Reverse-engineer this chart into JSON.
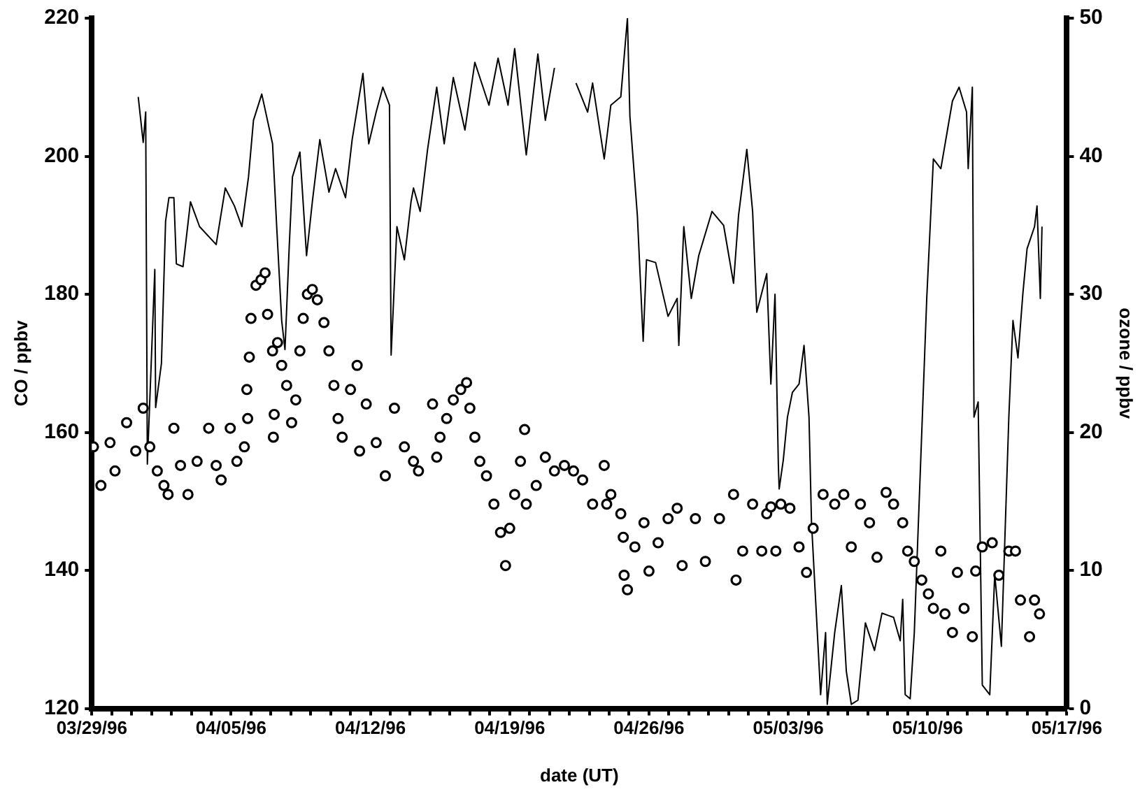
{
  "chart_data": {
    "type": "scatter",
    "xlabel": "date (UT)",
    "ylabel": "CO / ppbv",
    "y2label": "ozone / ppbv",
    "xlim": [
      "1996-03-29",
      "1996-05-17"
    ],
    "xticks": [
      {
        "value": "1996-03-29",
        "label": "03/29/96"
      },
      {
        "value": "1996-03-30",
        "label": null
      },
      {
        "value": "1996-03-31",
        "label": null
      },
      {
        "value": "1996-04-01",
        "label": null
      },
      {
        "value": "1996-04-02",
        "label": null
      },
      {
        "value": "1996-04-03",
        "label": null
      },
      {
        "value": "1996-04-04",
        "label": null
      },
      {
        "value": "1996-04-05",
        "label": "04/05/96"
      },
      {
        "value": "1996-04-06",
        "label": null
      },
      {
        "value": "1996-04-07",
        "label": null
      },
      {
        "value": "1996-04-08",
        "label": null
      },
      {
        "value": "1996-04-09",
        "label": null
      },
      {
        "value": "1996-04-10",
        "label": null
      },
      {
        "value": "1996-04-11",
        "label": null
      },
      {
        "value": "1996-04-12",
        "label": "04/12/96"
      },
      {
        "value": "1996-04-13",
        "label": null
      },
      {
        "value": "1996-04-14",
        "label": null
      },
      {
        "value": "1996-04-15",
        "label": null
      },
      {
        "value": "1996-04-16",
        "label": null
      },
      {
        "value": "1996-04-17",
        "label": null
      },
      {
        "value": "1996-04-18",
        "label": null
      },
      {
        "value": "1996-04-19",
        "label": "04/19/96"
      },
      {
        "value": "1996-04-20",
        "label": null
      },
      {
        "value": "1996-04-21",
        "label": null
      },
      {
        "value": "1996-04-22",
        "label": null
      },
      {
        "value": "1996-04-23",
        "label": null
      },
      {
        "value": "1996-04-24",
        "label": null
      },
      {
        "value": "1996-04-25",
        "label": null
      },
      {
        "value": "1996-04-26",
        "label": "04/26/96"
      },
      {
        "value": "1996-04-27",
        "label": null
      },
      {
        "value": "1996-04-28",
        "label": null
      },
      {
        "value": "1996-04-29",
        "label": null
      },
      {
        "value": "1996-04-30",
        "label": null
      },
      {
        "value": "1996-05-01",
        "label": null
      },
      {
        "value": "1996-05-02",
        "label": null
      },
      {
        "value": "1996-05-03",
        "label": "05/03/96"
      },
      {
        "value": "1996-05-04",
        "label": null
      },
      {
        "value": "1996-05-05",
        "label": null
      },
      {
        "value": "1996-05-06",
        "label": null
      },
      {
        "value": "1996-05-07",
        "label": null
      },
      {
        "value": "1996-05-08",
        "label": null
      },
      {
        "value": "1996-05-09",
        "label": null
      },
      {
        "value": "1996-05-10",
        "label": "05/10/96"
      },
      {
        "value": "1996-05-11",
        "label": null
      },
      {
        "value": "1996-05-12",
        "label": null
      },
      {
        "value": "1996-05-13",
        "label": null
      },
      {
        "value": "1996-05-14",
        "label": null
      },
      {
        "value": "1996-05-15",
        "label": null
      },
      {
        "value": "1996-05-16",
        "label": null
      },
      {
        "value": "1996-05-17",
        "label": "05/17/96"
      }
    ],
    "ylim": [
      120,
      220
    ],
    "yticks": [
      120,
      140,
      160,
      180,
      200,
      220
    ],
    "y2lim": [
      0,
      50
    ],
    "y2ticks": [
      0,
      10,
      20,
      30,
      40,
      50
    ],
    "legend": false,
    "series": [
      {
        "color": "#000000",
        "marker": "circle",
        "x": [
          "1996-03-29T02:00",
          "1996-03-29T11:00",
          "1996-03-29T22:00",
          "1996-03-30T04:00",
          "1996-03-30T18:00",
          "1996-03-31T05:00",
          "1996-03-31T14:00",
          "1996-03-31T22:00",
          "1996-04-01T07:00",
          "1996-04-01T15:00",
          "1996-04-01T20:00",
          "1996-04-02T03:00",
          "1996-04-02T11:00",
          "1996-04-02T20:00",
          "1996-04-03T07:00",
          "1996-04-03T21:00",
          "1996-04-04T06:00",
          "1996-04-04T12:00",
          "1996-04-04T23:00",
          "1996-04-05T07:00",
          "1996-04-05T16:00",
          "1996-04-05T20:00",
          "1996-04-05T19:00",
          "1996-04-05T22:00",
          "1996-04-06T00:00",
          "1996-04-06T06:00",
          "1996-04-06T12:00",
          "1996-04-06T17:00",
          "1996-04-06T20:00",
          "1996-04-07T02:00",
          "1996-04-07T04:00",
          "1996-04-07T03:00",
          "1996-04-07T08:00",
          "1996-04-07T13:00",
          "1996-04-07T19:00",
          "1996-04-08T01:00",
          "1996-04-08T06:00",
          "1996-04-08T11:00",
          "1996-04-08T15:00",
          "1996-04-08T20:00",
          "1996-04-09T02:00",
          "1996-04-09T08:00",
          "1996-04-09T16:00",
          "1996-04-09T22:00",
          "1996-04-10T04:00",
          "1996-04-10T09:00",
          "1996-04-10T14:00",
          "1996-04-11T00:00",
          "1996-04-11T08:00",
          "1996-04-11T11:00",
          "1996-04-11T19:00",
          "1996-04-12T07:00",
          "1996-04-12T18:00",
          "1996-04-13T05:00",
          "1996-04-13T17:00",
          "1996-04-14T04:00",
          "1996-04-14T10:00",
          "1996-04-15T03:00",
          "1996-04-15T12:00",
          "1996-04-15T08:00",
          "1996-04-15T20:00",
          "1996-04-16T04:00",
          "1996-04-16T13:00",
          "1996-04-16T20:00",
          "1996-04-17T00:00",
          "1996-04-17T06:00",
          "1996-04-17T12:00",
          "1996-04-17T20:00",
          "1996-04-18T05:00",
          "1996-04-18T13:00",
          "1996-04-18T19:00",
          "1996-04-19T00:00",
          "1996-04-19T06:00",
          "1996-04-19T13:00",
          "1996-04-19T18:00",
          "1996-04-19T20:00",
          "1996-04-20T08:00",
          "1996-04-20T19:00",
          "1996-04-21T06:00",
          "1996-04-21T18:00",
          "1996-04-22T05:00",
          "1996-04-22T16:00",
          "1996-04-23T04:00",
          "1996-04-23T18:00",
          "1996-04-23T21:00",
          "1996-04-24T02:00",
          "1996-04-24T14:00",
          "1996-04-24T17:00",
          "1996-04-24T18:00",
          "1996-04-24T22:00",
          "1996-04-25T07:00",
          "1996-04-25T18:00",
          "1996-04-26T00:00",
          "1996-04-26T11:00",
          "1996-04-26T23:00",
          "1996-04-27T10:00",
          "1996-04-27T16:00",
          "1996-04-28T08:00",
          "1996-04-28T20:00",
          "1996-04-29T13:00",
          "1996-04-30T06:00",
          "1996-04-30T09:00",
          "1996-04-30T17:00",
          "1996-05-01T05:00",
          "1996-05-01T22:00",
          "1996-05-02T09:00",
          "1996-05-01T16:00",
          "1996-05-02T03:00",
          "1996-05-02T15:00",
          "1996-05-03T02:00",
          "1996-05-03T13:00",
          "1996-05-03T22:00",
          "1996-05-04T06:00",
          "1996-05-04T18:00",
          "1996-05-05T08:00",
          "1996-05-05T19:00",
          "1996-05-06T04:00",
          "1996-05-06T15:00",
          "1996-05-07T02:00",
          "1996-05-07T11:00",
          "1996-05-07T22:00",
          "1996-05-08T07:00",
          "1996-05-08T18:00",
          "1996-05-09T00:00",
          "1996-05-09T08:00",
          "1996-05-09T17:00",
          "1996-05-10T01:00",
          "1996-05-10T07:00",
          "1996-05-10T16:00",
          "1996-05-10T21:00",
          "1996-05-11T06:00",
          "1996-05-11T12:00",
          "1996-05-11T20:00",
          "1996-05-12T06:00",
          "1996-05-12T10:00",
          "1996-05-12T18:00",
          "1996-05-13T06:00",
          "1996-05-13T14:00",
          "1996-05-14T02:00",
          "1996-05-14T10:00",
          "1996-05-14T16:00",
          "1996-05-15T03:00",
          "1996-05-15T09:00",
          "1996-05-15T15:00"
        ],
        "values": [
          157.9,
          152.3,
          158.5,
          154.4,
          161.4,
          157.3,
          163.5,
          157.9,
          154.4,
          152.3,
          151.0,
          160.6,
          155.2,
          151.0,
          155.8,
          160.6,
          155.2,
          153.1,
          160.6,
          155.8,
          157.9,
          162.0,
          166.2,
          170.9,
          176.5,
          181.3,
          182.1,
          183.1,
          177.1,
          171.8,
          162.6,
          159.3,
          173.0,
          169.7,
          166.8,
          161.4,
          164.7,
          171.8,
          176.5,
          180.0,
          180.7,
          179.2,
          175.9,
          171.8,
          166.8,
          162.0,
          159.3,
          166.2,
          169.7,
          157.3,
          164.1,
          158.5,
          153.7,
          163.5,
          157.9,
          155.8,
          154.4,
          164.1,
          159.3,
          156.4,
          162.0,
          164.7,
          166.2,
          167.2,
          163.5,
          159.3,
          155.8,
          153.7,
          149.6,
          145.5,
          140.7,
          146.1,
          151.0,
          155.8,
          160.4,
          149.6,
          152.3,
          156.4,
          154.4,
          155.2,
          154.4,
          153.1,
          149.6,
          155.2,
          149.6,
          151.0,
          148.2,
          144.8,
          139.3,
          137.2,
          143.4,
          146.9,
          139.9,
          144.0,
          147.5,
          149.0,
          140.7,
          147.5,
          141.3,
          147.5,
          151.0,
          138.6,
          142.8,
          149.6,
          148.2,
          142.8,
          142.8,
          149.2,
          149.6,
          149.0,
          143.4,
          139.7,
          146.1,
          151.0,
          149.6,
          151.0,
          143.4,
          149.6,
          146.9,
          141.9,
          151.3,
          149.6,
          146.9,
          142.8,
          141.3,
          138.6,
          136.6,
          134.5,
          142.8,
          133.7,
          131.0,
          139.7,
          134.5,
          130.4,
          139.9,
          143.4,
          144.0,
          139.3,
          142.8,
          142.8,
          135.7,
          130.4,
          135.7,
          133.7
        ]
      },
      {
        "type": "line",
        "axis": "y2",
        "color": "#000000",
        "marker": "none",
        "line_style": "solid",
        "x": [
          "1996-03-31T08:00",
          "1996-03-31T14:00",
          "1996-03-31T17:00",
          "1996-03-31T19:00",
          "1996-04-01T04:00",
          "1996-04-01T05:00",
          "1996-04-01T12:00",
          "1996-04-01T17:00",
          "1996-04-01T21:00",
          "1996-04-02T03:00",
          "1996-04-02T06:00",
          "1996-04-02T14:00",
          "1996-04-02T23:00",
          "1996-04-03T10:00",
          "1996-04-04T06:00",
          "1996-04-04T17:00",
          "1996-04-05T04:00",
          "1996-04-05T13:00",
          "1996-04-05T21:00",
          "1996-04-06T03:00",
          "1996-04-06T13:00",
          "1996-04-07T02:00",
          "1996-04-07T07:00",
          "1996-04-07T13:00",
          "1996-04-07T17:00",
          "1996-04-07T22:00",
          "1996-04-08T02:00",
          "1996-04-08T11:00",
          "1996-04-08T19:00",
          "1996-04-09T02:00",
          "1996-04-09T11:00",
          "1996-04-09T22:00",
          "1996-04-10T06:00",
          "1996-04-10T18:00",
          "1996-04-11T02:00",
          "1996-04-11T15:00",
          "1996-04-11T22:00",
          "1996-04-12T07:00",
          "1996-04-12T15:00",
          "1996-04-12T23:00",
          "1996-04-13T01:00",
          "1996-04-13T08:00",
          "1996-04-13T17:00",
          "1996-04-14T01:00",
          "1996-04-14T04:00",
          "1996-04-14T12:00",
          "1996-04-14T21:00",
          "1996-04-15T08:00",
          "1996-04-15T17:00",
          "1996-04-16T04:00",
          "1996-04-16T18:00",
          "1996-04-17T06:00",
          "1996-04-17T23:00",
          "1996-04-18T10:00",
          "1996-04-18T22:00",
          "1996-04-19T06:00",
          "1996-04-19T20:00",
          "1996-04-20T10:00",
          "1996-04-20T19:00",
          "1996-04-21T06:00",
          "1996-04-21T18:00",
          "1996-04-22T08:00",
          "1996-04-22T22:00",
          "1996-04-23T04:00",
          "1996-04-23T18:00",
          "1996-04-24T02:00",
          "1996-04-24T14:00",
          "1996-04-24T22:00",
          "1996-04-25T01:00",
          "1996-04-25T10:00",
          "1996-04-25T17:00",
          "1996-04-25T21:00",
          "1996-04-26T08:00",
          "1996-04-26T23:00",
          "1996-04-27T10:00",
          "1996-04-27T12:00",
          "1996-04-27T18:00",
          "1996-04-28T03:00",
          "1996-04-28T12:00",
          "1996-04-29T04:00",
          "1996-04-29T18:00",
          "1996-04-30T06:00",
          "1996-04-30T12:00",
          "1996-04-30T22:00",
          "1996-05-01T05:00",
          "1996-05-01T10:00",
          "1996-05-01T22:00",
          "1996-05-02T03:00",
          "1996-05-02T08:00",
          "1996-05-02T12:00",
          "1996-05-02T13:00",
          "1996-05-02T18:00",
          "1996-05-02T23:00",
          "1996-05-03T05:00",
          "1996-05-03T13:00",
          "1996-05-03T19:00",
          "1996-05-04T01:00",
          "1996-05-04T04:00",
          "1996-05-04T15:00",
          "1996-05-04T21:00",
          "1996-05-04T23:00",
          "1996-05-05T08:00",
          "1996-05-05T16:00",
          "1996-05-05T22:00",
          "1996-05-06T04:00",
          "1996-05-06T12:00",
          "1996-05-06T21:00",
          "1996-05-07T08:00",
          "1996-05-07T17:00",
          "1996-05-08T07:00",
          "1996-05-08T15:00",
          "1996-05-08T18:00",
          "1996-05-08T21:00",
          "1996-05-09T03:00",
          "1996-05-09T08:00",
          "1996-05-09T23:00",
          "1996-05-10T07:00",
          "1996-05-10T16:00",
          "1996-05-11T00:00",
          "1996-05-11T06:00",
          "1996-05-11T14:00",
          "1996-05-11T23:00",
          "1996-05-12T01:00",
          "1996-05-12T06:00",
          "1996-05-12T08:00",
          "1996-05-12T13:00",
          "1996-05-12T18:00",
          "1996-05-13T03:00",
          "1996-05-13T09:00",
          "1996-05-13T17:00",
          "1996-05-14T02:00",
          "1996-05-14T07:00",
          "1996-05-14T13:00",
          "1996-05-14T19:00",
          "1996-05-15T00:00",
          "1996-05-15T09:00",
          "1996-05-15T12:00",
          "1996-05-15T16:00",
          "1996-05-15T18:00"
        ],
        "values": [
          44.3,
          41.0,
          43.2,
          17.7,
          31.8,
          21.8,
          25.0,
          35.3,
          37.0,
          37.0,
          32.2,
          32.0,
          36.7,
          34.9,
          33.6,
          37.7,
          36.4,
          34.9,
          38.5,
          42.6,
          44.5,
          40.9,
          34.9,
          28.1,
          26.0,
          33.3,
          38.5,
          40.3,
          32.8,
          36.7,
          41.2,
          37.4,
          39.1,
          37.0,
          41.2,
          46.0,
          40.9,
          43.2,
          45.0,
          43.7,
          25.6,
          34.9,
          32.5,
          36.7,
          37.7,
          36.0,
          40.5,
          45.0,
          40.9,
          45.7,
          41.9,
          46.8,
          43.7,
          47.1,
          43.7,
          47.8,
          40.1,
          47.4,
          42.6,
          46.4,
          null,
          45.3,
          43.2,
          45.3,
          39.8,
          43.7,
          44.3,
          50.0,
          42.9,
          35.7,
          26.6,
          32.5,
          32.3,
          28.4,
          29.7,
          26.3,
          34.9,
          29.7,
          32.8,
          36.0,
          35.0,
          30.8,
          35.7,
          40.5,
          36.0,
          28.7,
          31.5,
          23.5,
          30.0,
          17.7,
          15.9,
          18.0,
          21.1,
          22.9,
          23.5,
          26.3,
          21.1,
          13.5,
          1.0,
          5.5,
          0.3,
          5.5,
          8.9,
          2.7,
          0.3,
          0.6,
          6.2,
          4.2,
          6.9,
          6.6,
          4.9,
          7.9,
          1.0,
          0.7,
          5.5,
          29.7,
          39.8,
          39.1,
          41.9,
          44.0,
          45.0,
          43.2,
          39.1,
          45.0,
          21.1,
          22.2,
          1.7,
          1.0,
          9.7,
          4.5,
          21.1,
          28.1,
          25.4,
          30.1,
          33.3,
          34.9,
          36.4,
          29.7,
          34.9
        ]
      }
    ]
  }
}
